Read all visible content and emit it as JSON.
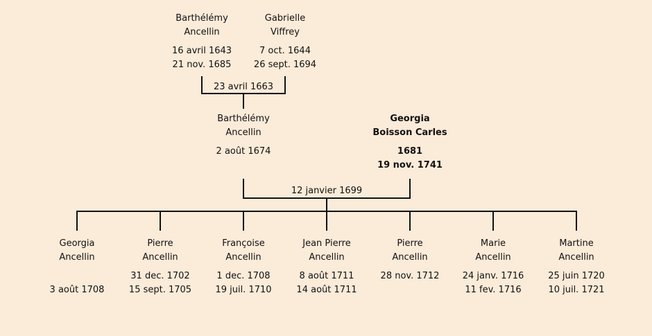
{
  "grandparents": {
    "father": {
      "first": "Barthélémy",
      "last": "Ancellin",
      "born": "16 avril 1643",
      "died": "21 nov. 1685"
    },
    "mother": {
      "first": "Gabrielle",
      "last": "Viffrey",
      "born": "7 oct. 1644",
      "died": "26 sept. 1694"
    },
    "marriage": "23 avril 1663"
  },
  "parents": {
    "father": {
      "first": "Barthélémy",
      "last": "Ancellin",
      "born": "2 août 1674",
      "died": ""
    },
    "mother": {
      "first": "Georgia",
      "last": "Boisson Carles",
      "born": "1681",
      "died": "19 nov. 1741",
      "highlighted": true
    },
    "marriage": "12 janvier 1699"
  },
  "children": [
    {
      "first": "Georgia",
      "last": "Ancellin",
      "born": "",
      "died": "3 août 1708"
    },
    {
      "first": "Pierre",
      "last": "Ancellin",
      "born": "31 dec. 1702",
      "died": "15 sept. 1705"
    },
    {
      "first": "Françoise",
      "last": "Ancellin",
      "born": "1 dec. 1708",
      "died": "19 juil. 1710"
    },
    {
      "first": "Jean Pierre",
      "last": "Ancellin",
      "born": "8 août 1711",
      "died": "14 août 1711"
    },
    {
      "first": "Pierre",
      "last": "Ancellin",
      "born": "28 nov. 1712",
      "died": ""
    },
    {
      "first": "Marie",
      "last": "Ancellin",
      "born": "24 janv. 1716",
      "died": "11 fev. 1716"
    },
    {
      "first": "Martine",
      "last": "Ancellin",
      "born": "25 juin 1720",
      "died": "10 juil. 1721"
    }
  ]
}
